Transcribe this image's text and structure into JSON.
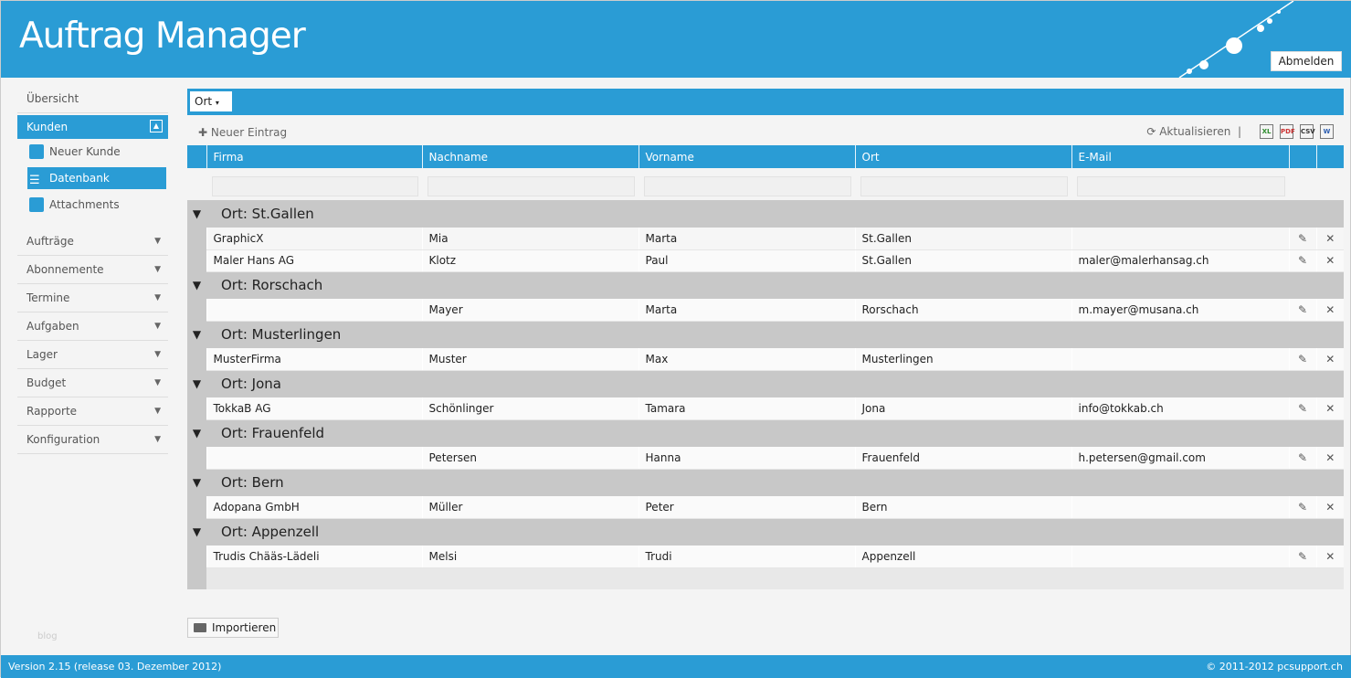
{
  "app": {
    "title": "Auftrag Manager",
    "logout": "Abmelden"
  },
  "sidebar": {
    "overview": "Übersicht",
    "kunden": "Kunden",
    "sub": [
      {
        "label": "Neuer Kunde",
        "icon": "user-add-icon"
      },
      {
        "label": "Datenbank",
        "icon": "database-icon"
      },
      {
        "label": "Attachments",
        "icon": "attachment-icon"
      }
    ],
    "sections": [
      "Aufträge",
      "Abonnemente",
      "Termine",
      "Aufgaben",
      "Lager",
      "Budget",
      "Rapporte",
      "Konfiguration"
    ],
    "blog": "blog"
  },
  "grid": {
    "group_by": "Ort",
    "new_entry": "Neuer Eintrag",
    "refresh": "Aktualisieren",
    "exports": [
      "Excel",
      "PDF",
      "CSV",
      "Word"
    ],
    "columns": [
      "Firma",
      "Nachname",
      "Vorname",
      "Ort",
      "E-Mail"
    ],
    "groups": [
      {
        "label": "Ort: St.Gallen",
        "rows": [
          [
            "GraphicX",
            "Mia",
            "Marta",
            "St.Gallen",
            ""
          ],
          [
            "Maler Hans AG",
            "Klotz",
            "Paul",
            "St.Gallen",
            "maler@malerhansag.ch"
          ]
        ]
      },
      {
        "label": "Ort: Rorschach",
        "rows": [
          [
            "",
            "Mayer",
            "Marta",
            "Rorschach",
            "m.mayer@musana.ch"
          ]
        ]
      },
      {
        "label": "Ort: Musterlingen",
        "rows": [
          [
            "MusterFirma",
            "Muster",
            "Max",
            "Musterlingen",
            ""
          ]
        ]
      },
      {
        "label": "Ort: Jona",
        "rows": [
          [
            "TokkaB AG",
            "Schönlinger",
            "Tamara",
            "Jona",
            "info@tokkab.ch"
          ]
        ]
      },
      {
        "label": "Ort: Frauenfeld",
        "rows": [
          [
            "",
            "Petersen",
            "Hanna",
            "Frauenfeld",
            "h.petersen@gmail.com"
          ]
        ]
      },
      {
        "label": "Ort: Bern",
        "rows": [
          [
            "Adopana GmbH",
            "Müller",
            "Peter",
            "Bern",
            ""
          ]
        ]
      },
      {
        "label": "Ort: Appenzell",
        "rows": [
          [
            "Trudis Chääs-Lädeli",
            "Melsi",
            "Trudi",
            "Appenzell",
            ""
          ]
        ]
      }
    ],
    "import": "Importieren"
  },
  "footer": {
    "version": "Version 2.15 (release 03. Dezember 2012)",
    "copyright": "© 2011-2012 pcsupport.ch"
  }
}
